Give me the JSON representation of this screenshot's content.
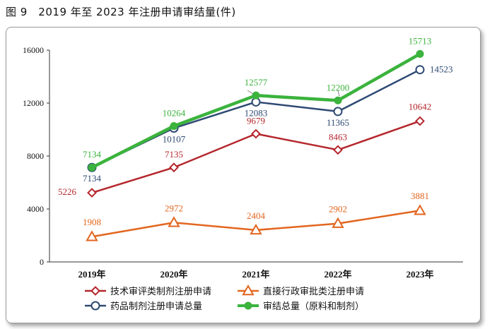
{
  "figure_title": "图 9　2019 年至 2023 年注册申请审结量(件)",
  "chart_data": {
    "type": "line",
    "x": [
      "2019年",
      "2020年",
      "2021年",
      "2022年",
      "2023年"
    ],
    "ylim": [
      0,
      16000
    ],
    "yticks": [
      "0",
      "4000",
      "8000",
      "12000",
      "16000"
    ],
    "grid": "horizontal",
    "legend_position": "bottom",
    "series": [
      {
        "name": "技术审评类制剂注册申请",
        "color": "#b5272d",
        "marker": "diamond",
        "values": [
          5226,
          7135,
          9679,
          8463,
          10642
        ],
        "labels": [
          "5226",
          "7135",
          "9679",
          "8463",
          "10642"
        ]
      },
      {
        "name": "直接行政审批类注册申请",
        "color": "#e2661f",
        "marker": "triangle",
        "values": [
          1908,
          2972,
          2404,
          2902,
          3881
        ],
        "labels": [
          "1908",
          "2972",
          "2404",
          "2902",
          "3881"
        ]
      },
      {
        "name": "药品制剂注册申请总量",
        "color": "#2e4a73",
        "marker": "circle",
        "values": [
          7134,
          10107,
          12083,
          11365,
          14523
        ],
        "labels": [
          "7134",
          "10107",
          "12083",
          "11365",
          "14523"
        ]
      },
      {
        "name": "审结总量（原料和制剂）",
        "color": "#3bb33d",
        "marker": "dot",
        "values": [
          7134,
          10264,
          12577,
          12200,
          15713
        ],
        "labels": [
          "7134",
          "10264",
          "12577",
          "12200",
          "15713"
        ]
      }
    ]
  }
}
